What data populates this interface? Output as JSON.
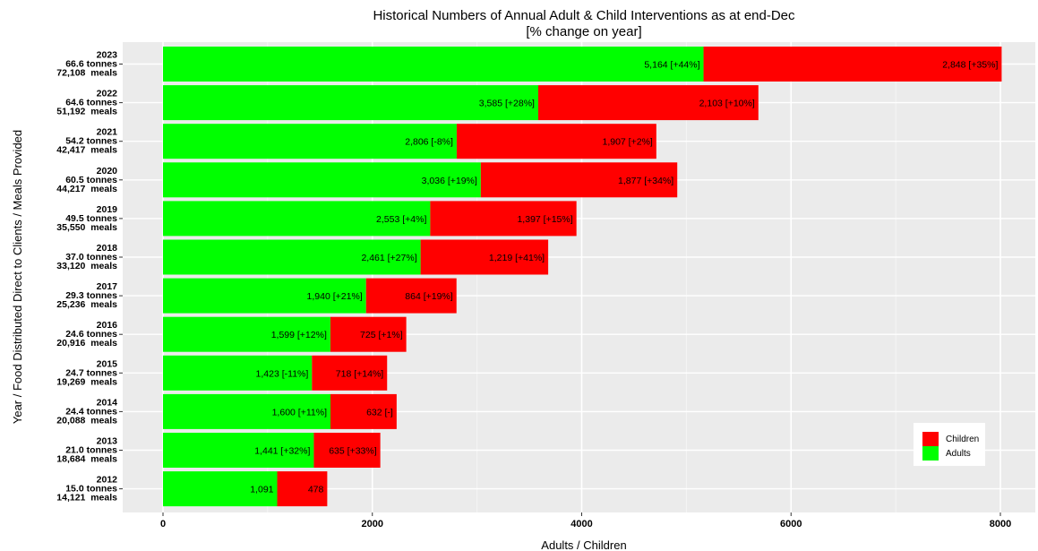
{
  "chart_data": {
    "type": "bar",
    "orientation": "horizontal",
    "stacked": true,
    "title": "Historical Numbers of Annual Adult & Child Interventions as at end-Dec",
    "subtitle": "[% change on year]",
    "xlabel": "Adults / Children",
    "ylabel": "Year / Food Distributed Direct to Clients / Meals Provided",
    "xlim": [
      0,
      8000
    ],
    "xticks": [
      "0",
      "2000",
      "4000",
      "6000",
      "8000"
    ],
    "grid": true,
    "legend_position": "bottom-right",
    "categories": [
      {
        "year": "2023",
        "tonnes": "66.6 tonnes",
        "meals": "72,108  meals"
      },
      {
        "year": "2022",
        "tonnes": "64.6 tonnes",
        "meals": "51,192  meals"
      },
      {
        "year": "2021",
        "tonnes": "54.2 tonnes",
        "meals": "42,417  meals"
      },
      {
        "year": "2020",
        "tonnes": "60.5 tonnes",
        "meals": "44,217  meals"
      },
      {
        "year": "2019",
        "tonnes": "49.5 tonnes",
        "meals": "35,550  meals"
      },
      {
        "year": "2018",
        "tonnes": "37.0 tonnes",
        "meals": "33,120  meals"
      },
      {
        "year": "2017",
        "tonnes": "29.3 tonnes",
        "meals": "25,236  meals"
      },
      {
        "year": "2016",
        "tonnes": "24.6 tonnes",
        "meals": "20,916  meals"
      },
      {
        "year": "2015",
        "tonnes": "24.7 tonnes",
        "meals": "19,269  meals"
      },
      {
        "year": "2014",
        "tonnes": "24.4 tonnes",
        "meals": "20,088  meals"
      },
      {
        "year": "2013",
        "tonnes": "21.0 tonnes",
        "meals": "18,684  meals"
      },
      {
        "year": "2012",
        "tonnes": "15.0 tonnes",
        "meals": "14,121  meals"
      }
    ],
    "series": [
      {
        "name": "Adults",
        "color": "#00ff00",
        "values": [
          5164,
          3585,
          2806,
          3036,
          2553,
          2461,
          1940,
          1599,
          1423,
          1600,
          1441,
          1091
        ],
        "labels": [
          "5,164 [+44%]",
          "3,585 [+28%]",
          "2,806 [-8%]",
          "3,036 [+19%]",
          "2,553 [+4%]",
          "2,461 [+27%]",
          "1,940 [+21%]",
          "1,599 [+12%]",
          "1,423 [-11%]",
          "1,600 [+11%]",
          "1,441 [+32%]",
          "1,091"
        ]
      },
      {
        "name": "Children",
        "color": "#ff0000",
        "values": [
          2848,
          2103,
          1907,
          1877,
          1397,
          1219,
          864,
          725,
          718,
          632,
          635,
          478
        ],
        "labels": [
          "2,848 [+35%]",
          "2,103 [+10%]",
          "1,907 [+2%]",
          "1,877 [+34%]",
          "1,397 [+15%]",
          "1,219 [+41%]",
          "864 [+19%]",
          "725 [+1%]",
          "718 [+14%]",
          "632  [-]",
          "635 [+33%]",
          "478"
        ]
      }
    ],
    "legend_order": [
      "Children",
      "Adults"
    ]
  },
  "colors": {
    "panel_background": "#ebebeb",
    "grid_major": "#ffffff",
    "grid_minor": "#f5f5f5"
  }
}
